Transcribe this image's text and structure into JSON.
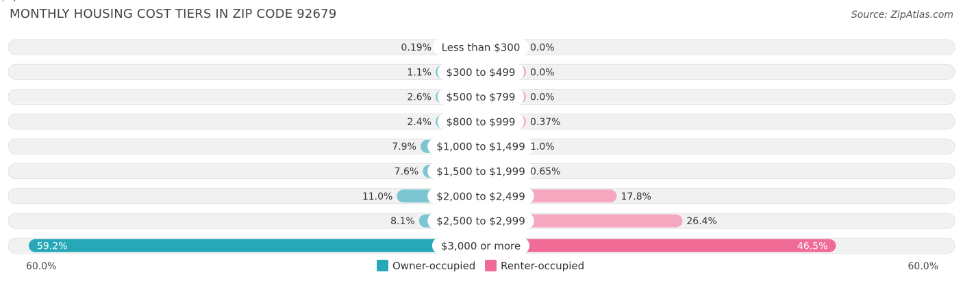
{
  "title": "MONTHLY HOUSING COST TIERS IN ZIP CODE 92679",
  "source": "Source: ZipAtlas.com",
  "colors": {
    "owner": "#7cc6d1",
    "owner_strong": "#26a8b8",
    "renter": "#f6a7c0",
    "renter_strong": "#f06b96",
    "row_bg": "#f1f1f1"
  },
  "chart_data": {
    "type": "bar",
    "orientation": "horizontal-diverging",
    "categories": [
      "Less than $300",
      "$300 to $499",
      "$500 to $799",
      "$800 to $999",
      "$1,000 to $1,499",
      "$1,500 to $1,999",
      "$2,000 to $2,499",
      "$2,500 to $2,999",
      "$3,000 or more"
    ],
    "series": [
      {
        "name": "Owner-occupied",
        "values": [
          0.19,
          1.1,
          2.6,
          2.4,
          7.9,
          7.6,
          11.0,
          8.1,
          59.2
        ],
        "labels": [
          "0.19%",
          "1.1%",
          "2.6%",
          "2.4%",
          "7.9%",
          "7.6%",
          "11.0%",
          "8.1%",
          "59.2%"
        ]
      },
      {
        "name": "Renter-occupied",
        "values": [
          0.0,
          0.0,
          0.0,
          0.37,
          1.0,
          0.65,
          17.8,
          26.4,
          46.5
        ],
        "labels": [
          "0.0%",
          "0.0%",
          "0.0%",
          "0.37%",
          "1.0%",
          "0.65%",
          "17.8%",
          "26.4%",
          "46.5%"
        ]
      }
    ],
    "xlim": [
      -60,
      60
    ],
    "axis_left_label": "60.0%",
    "axis_right_label": "60.0%",
    "legend_position": "bottom-center"
  }
}
